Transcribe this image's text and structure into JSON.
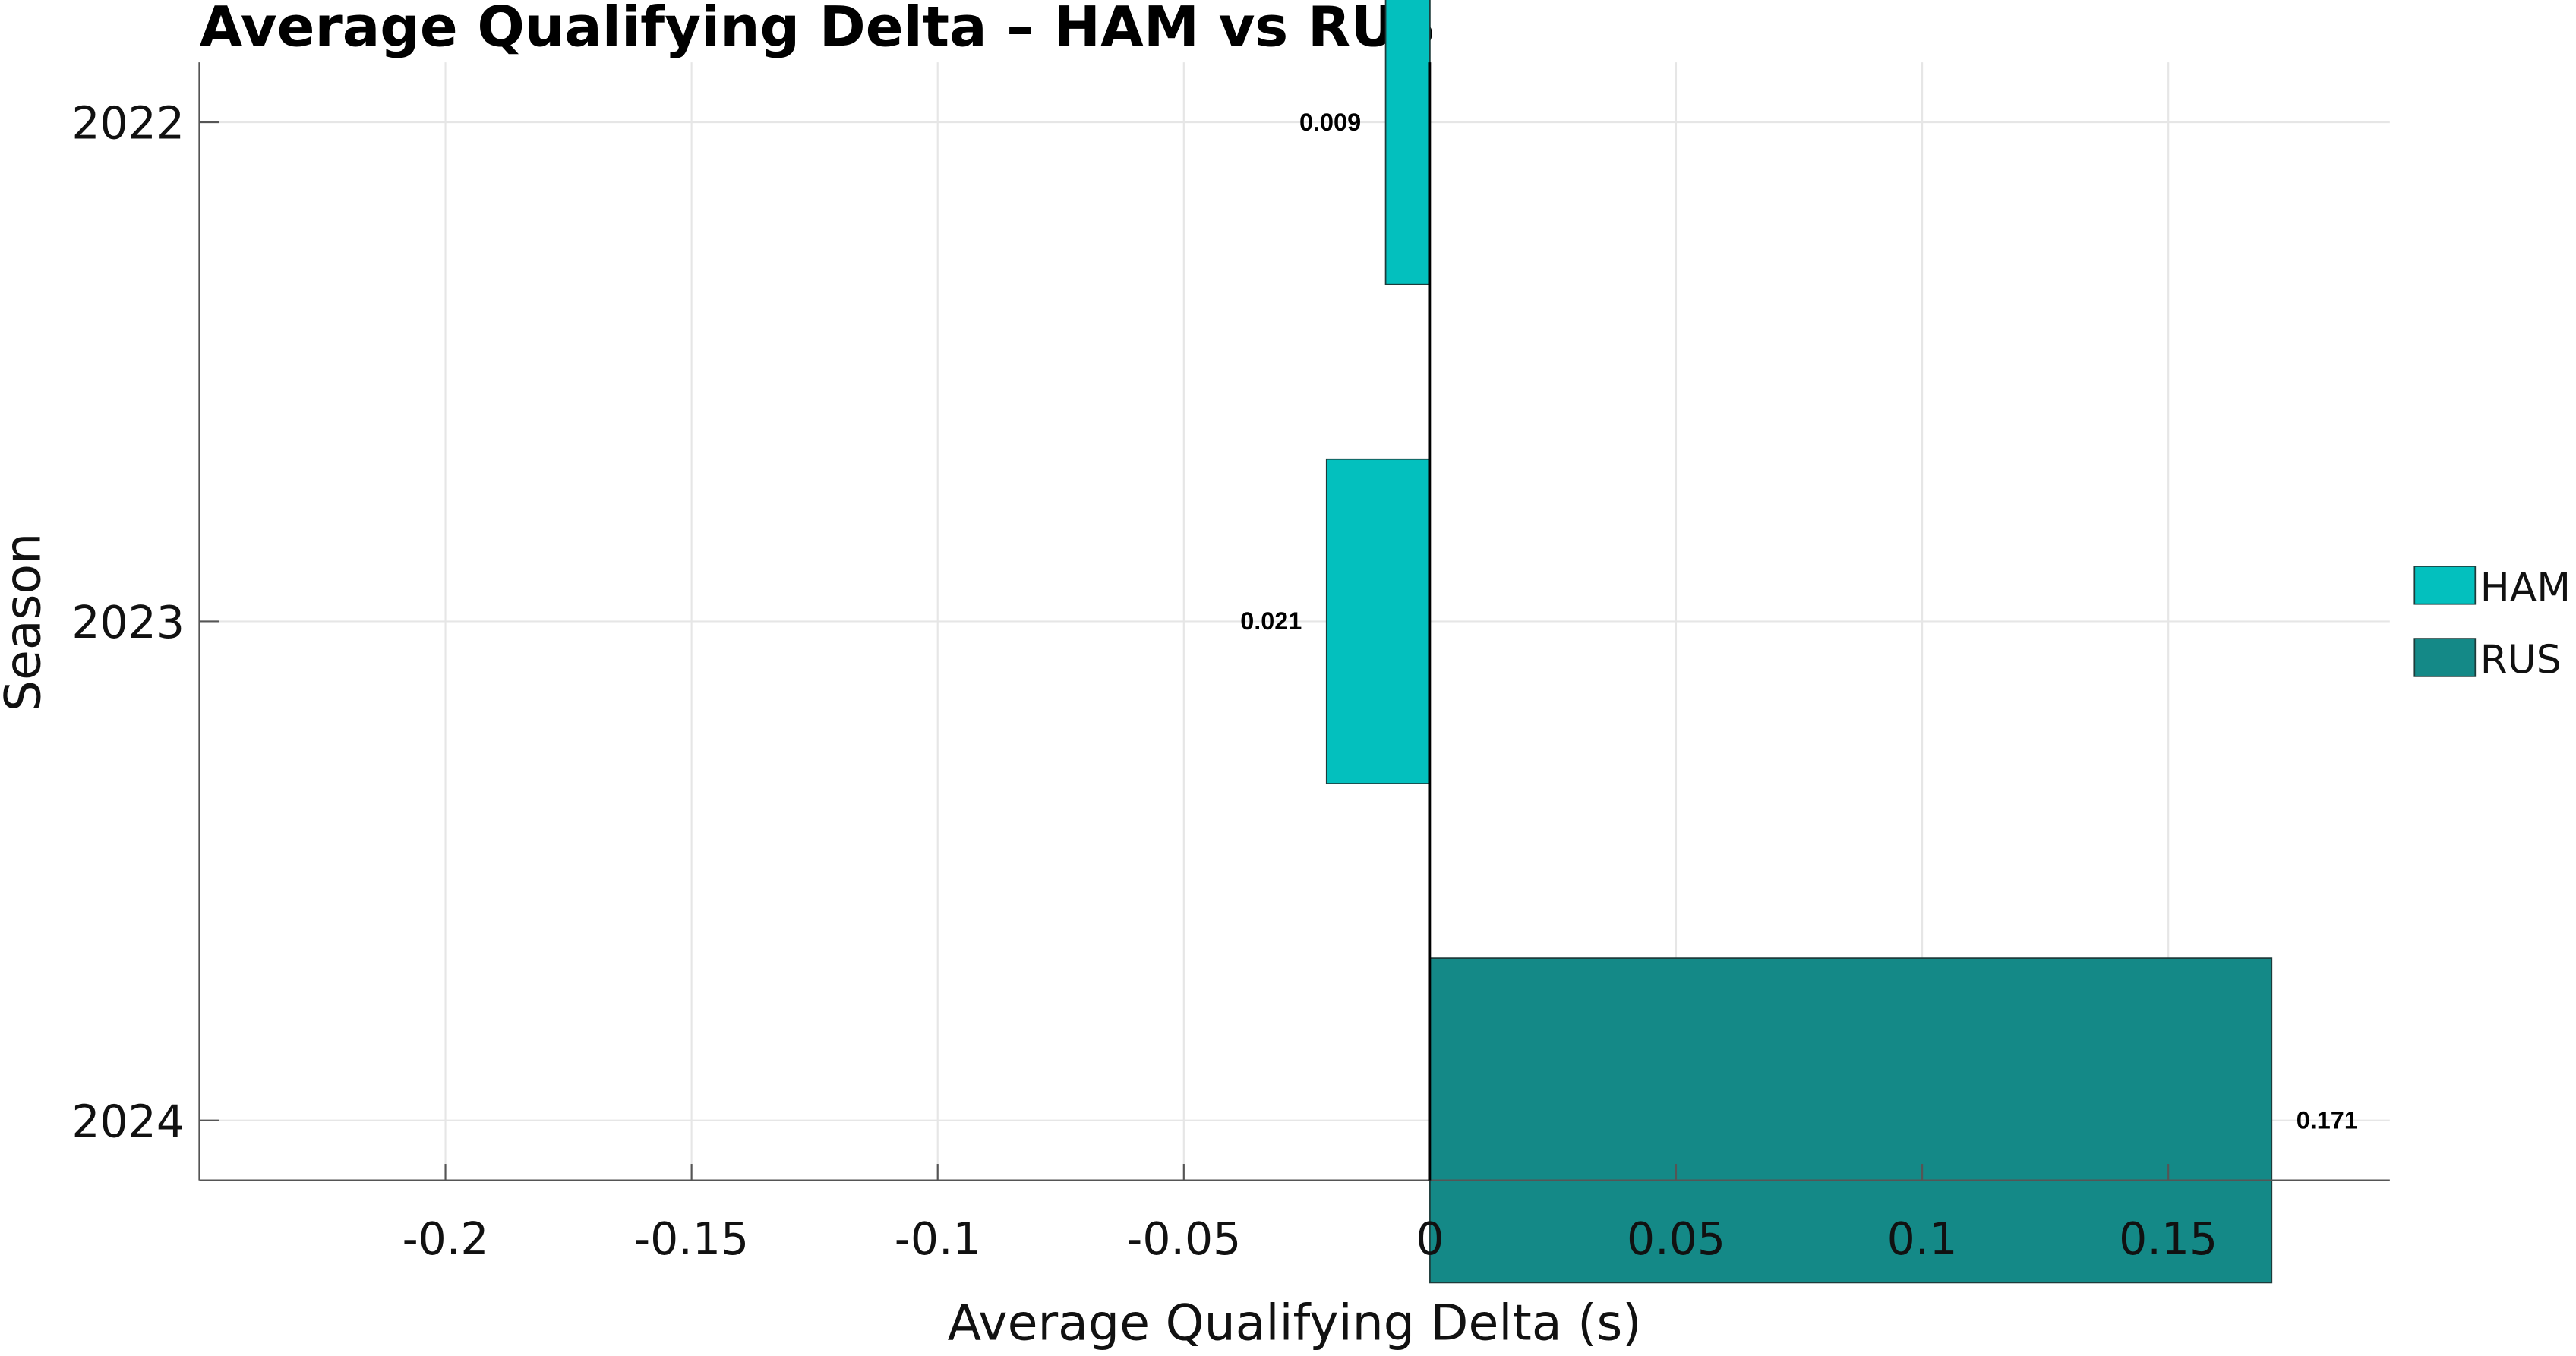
{
  "chart_data": {
    "type": "bar",
    "orientation": "horizontal",
    "title": "Average Qualifying Delta – HAM vs RUS",
    "xlabel": "Average Qualifying Delta (s)",
    "ylabel": "Season",
    "categories": [
      "2022",
      "2023",
      "2024"
    ],
    "bars": [
      {
        "category": "2022",
        "series": "HAM",
        "value": -0.009,
        "label": "0.009"
      },
      {
        "category": "2023",
        "series": "HAM",
        "value": -0.021,
        "label": "0.021"
      },
      {
        "category": "2024",
        "series": "RUS",
        "value": 0.171,
        "label": "0.171"
      }
    ],
    "series": [
      {
        "name": "HAM",
        "color": "#03C0BE"
      },
      {
        "name": "RUS",
        "color": "#148987"
      }
    ],
    "xlim": [
      -0.25,
      0.195
    ],
    "xticks": [
      -0.2,
      -0.15,
      -0.1,
      -0.05,
      0,
      0.05,
      0.1,
      0.15
    ],
    "xtick_labels": [
      "-0.2",
      "-0.15",
      "-0.1",
      "-0.05",
      "0",
      "0.05",
      "0.1",
      "0.15"
    ],
    "grid": true,
    "legend_position": "right"
  }
}
